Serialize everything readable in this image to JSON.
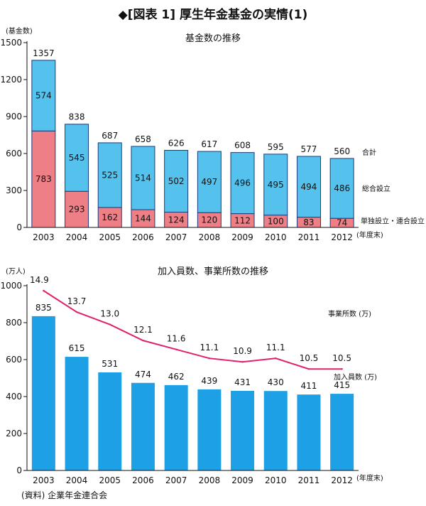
{
  "figure_title": "◆[図表 1] 厚生年金基金の実情(1)",
  "source": "(資料) 企業年金連合会",
  "chart_data": [
    {
      "type": "bar",
      "stacked": true,
      "title": "基金数の推移",
      "ylabel": "(基金数)",
      "xlabel": "(年度末)",
      "ylim": [
        0,
        1500
      ],
      "yticks": [
        0,
        300,
        600,
        900,
        1200,
        1500
      ],
      "categories": [
        "2003",
        "2004",
        "2005",
        "2006",
        "2007",
        "2008",
        "2009",
        "2010",
        "2011",
        "2012"
      ],
      "series": [
        {
          "name": "単独設立・連合設立",
          "color": "#ee7f86",
          "values": [
            783,
            293,
            162,
            144,
            124,
            120,
            112,
            100,
            83,
            74
          ]
        },
        {
          "name": "総合設立",
          "color": "#55c2ee",
          "values": [
            574,
            545,
            525,
            514,
            502,
            497,
            496,
            495,
            494,
            486
          ]
        }
      ],
      "totals_label": "合計",
      "totals": [
        1357,
        838,
        687,
        658,
        626,
        617,
        608,
        595,
        577,
        560
      ],
      "legend_position": "right"
    },
    {
      "type": "bar",
      "title": "加入員数、事業所数の推移",
      "ylabel": "(万人)",
      "xlabel": "(年度末)",
      "ylim": [
        0,
        1000
      ],
      "yticks": [
        0,
        200,
        400,
        600,
        800,
        1000
      ],
      "categories": [
        "2003",
        "2004",
        "2005",
        "2006",
        "2007",
        "2008",
        "2009",
        "2010",
        "2011",
        "2012"
      ],
      "series": [
        {
          "name": "加入員数 (万)",
          "kind": "bar",
          "color": "#1ea0e6",
          "values": [
            835,
            615,
            531,
            474,
            462,
            439,
            431,
            430,
            411,
            415
          ]
        },
        {
          "name": "事業所数 (万)",
          "kind": "line",
          "color": "#e0206a",
          "values": [
            14.9,
            13.7,
            13.0,
            12.1,
            11.6,
            11.1,
            10.9,
            11.1,
            10.5,
            10.5
          ]
        }
      ],
      "legend_position": "right"
    }
  ]
}
